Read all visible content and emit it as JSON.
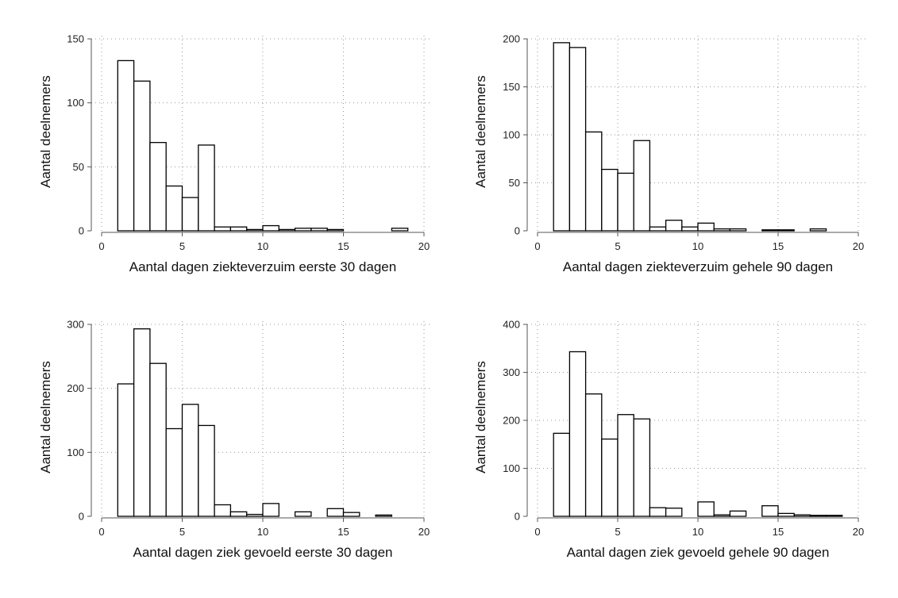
{
  "chart_data": [
    {
      "type": "bar",
      "xlabel": "Aantal dagen ziekteverzuim eerste 30 dagen",
      "ylabel": "Aantal deelnemers",
      "xlim": [
        0,
        20
      ],
      "ylim": [
        0,
        150
      ],
      "xticks": [
        0,
        5,
        10,
        15,
        20
      ],
      "yticks": [
        0,
        50,
        100,
        150
      ],
      "grid": true,
      "bin_width": 1,
      "bins": [
        {
          "x": 1,
          "count": 133
        },
        {
          "x": 2,
          "count": 117
        },
        {
          "x": 3,
          "count": 69
        },
        {
          "x": 4,
          "count": 35
        },
        {
          "x": 5,
          "count": 26
        },
        {
          "x": 6,
          "count": 67
        },
        {
          "x": 7,
          "count": 3
        },
        {
          "x": 8,
          "count": 3
        },
        {
          "x": 9,
          "count": 1
        },
        {
          "x": 10,
          "count": 4
        },
        {
          "x": 11,
          "count": 1
        },
        {
          "x": 12,
          "count": 2
        },
        {
          "x": 13,
          "count": 2
        },
        {
          "x": 14,
          "count": 1
        },
        {
          "x": 18,
          "count": 2
        }
      ]
    },
    {
      "type": "bar",
      "xlabel": "Aantal dagen ziekteverzuim gehele 90 dagen",
      "ylabel": "Aantal deelnemers",
      "xlim": [
        0,
        20
      ],
      "ylim": [
        0,
        200
      ],
      "xticks": [
        0,
        5,
        10,
        15,
        20
      ],
      "yticks": [
        0,
        50,
        100,
        150,
        200
      ],
      "grid": true,
      "bin_width": 1,
      "bins": [
        {
          "x": 1,
          "count": 196
        },
        {
          "x": 2,
          "count": 191
        },
        {
          "x": 3,
          "count": 103
        },
        {
          "x": 4,
          "count": 64
        },
        {
          "x": 5,
          "count": 60
        },
        {
          "x": 6,
          "count": 94
        },
        {
          "x": 7,
          "count": 4
        },
        {
          "x": 8,
          "count": 11
        },
        {
          "x": 9,
          "count": 4
        },
        {
          "x": 10,
          "count": 8
        },
        {
          "x": 11,
          "count": 2
        },
        {
          "x": 12,
          "count": 2
        },
        {
          "x": 14,
          "count": 1
        },
        {
          "x": 15,
          "count": 1
        },
        {
          "x": 17,
          "count": 2
        }
      ]
    },
    {
      "type": "bar",
      "xlabel": "Aantal dagen ziek gevoeld eerste 30 dagen",
      "ylabel": "Aantal deelnemers",
      "xlim": [
        0,
        20
      ],
      "ylim": [
        0,
        300
      ],
      "xticks": [
        0,
        5,
        10,
        15,
        20
      ],
      "yticks": [
        0,
        100,
        200,
        300
      ],
      "grid": true,
      "bin_width": 1,
      "bins": [
        {
          "x": 1,
          "count": 207
        },
        {
          "x": 2,
          "count": 293
        },
        {
          "x": 3,
          "count": 239
        },
        {
          "x": 4,
          "count": 137
        },
        {
          "x": 5,
          "count": 175
        },
        {
          "x": 6,
          "count": 142
        },
        {
          "x": 7,
          "count": 18
        },
        {
          "x": 8,
          "count": 7
        },
        {
          "x": 9,
          "count": 3
        },
        {
          "x": 10,
          "count": 20
        },
        {
          "x": 12,
          "count": 7
        },
        {
          "x": 14,
          "count": 12
        },
        {
          "x": 15,
          "count": 6
        },
        {
          "x": 17,
          "count": 2
        }
      ]
    },
    {
      "type": "bar",
      "xlabel": "Aantal dagen ziek gevoeld gehele 90 dagen",
      "ylabel": "Aantal deelnemers",
      "xlim": [
        0,
        20
      ],
      "ylim": [
        0,
        400
      ],
      "xticks": [
        0,
        5,
        10,
        15,
        20
      ],
      "yticks": [
        0,
        100,
        200,
        300,
        400
      ],
      "grid": true,
      "bin_width": 1,
      "bins": [
        {
          "x": 1,
          "count": 173
        },
        {
          "x": 2,
          "count": 343
        },
        {
          "x": 3,
          "count": 255
        },
        {
          "x": 4,
          "count": 161
        },
        {
          "x": 5,
          "count": 212
        },
        {
          "x": 6,
          "count": 203
        },
        {
          "x": 7,
          "count": 18
        },
        {
          "x": 8,
          "count": 17
        },
        {
          "x": 10,
          "count": 30
        },
        {
          "x": 11,
          "count": 3
        },
        {
          "x": 12,
          "count": 11
        },
        {
          "x": 14,
          "count": 22
        },
        {
          "x": 15,
          "count": 6
        },
        {
          "x": 16,
          "count": 3
        },
        {
          "x": 17,
          "count": 2
        },
        {
          "x": 18,
          "count": 2
        }
      ]
    }
  ]
}
